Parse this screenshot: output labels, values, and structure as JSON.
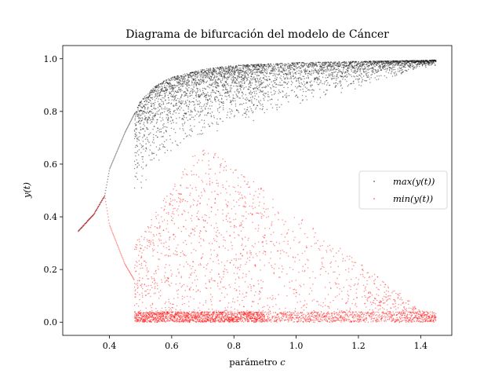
{
  "chart_data": {
    "type": "scatter",
    "title": "Diagrama de bifurcación del modelo de Cáncer",
    "xlabel": "parámetro c",
    "ylabel": "y(t)",
    "xlim": [
      0.25,
      1.5
    ],
    "ylim": [
      -0.05,
      1.05
    ],
    "xticks": [
      "0.4",
      "0.6",
      "0.8",
      "1.0",
      "1.2",
      "1.4"
    ],
    "yticks": [
      "0.0",
      "0.2",
      "0.4",
      "0.6",
      "0.8",
      "1.0"
    ],
    "legend_position": "center-right",
    "grid": false,
    "series": [
      {
        "name": "max(y(t))",
        "color": "#000000",
        "description_points": [
          [
            0.3,
            0.345
          ],
          [
            0.35,
            0.41
          ],
          [
            0.385,
            0.48
          ],
          [
            0.4,
            0.58
          ],
          [
            0.45,
            0.72
          ],
          [
            0.48,
            0.79
          ],
          [
            0.5,
            0.84
          ],
          [
            0.55,
            0.9
          ],
          [
            0.6,
            0.93
          ],
          [
            0.7,
            0.96
          ],
          [
            0.8,
            0.975
          ],
          [
            1.0,
            0.985
          ],
          [
            1.2,
            0.99
          ],
          [
            1.45,
            0.995
          ]
        ]
      },
      {
        "name": "min(y(t))",
        "color": "#ff0000",
        "description_points": [
          [
            0.3,
            0.345
          ],
          [
            0.35,
            0.41
          ],
          [
            0.385,
            0.48
          ],
          [
            0.4,
            0.37
          ],
          [
            0.45,
            0.22
          ],
          [
            0.48,
            0.16
          ],
          [
            0.5,
            0.1
          ],
          [
            0.55,
            0.03
          ],
          [
            0.6,
            0.01
          ],
          [
            0.8,
            0.005
          ],
          [
            1.0,
            0.0
          ],
          [
            1.45,
            0.0
          ]
        ]
      }
    ]
  }
}
